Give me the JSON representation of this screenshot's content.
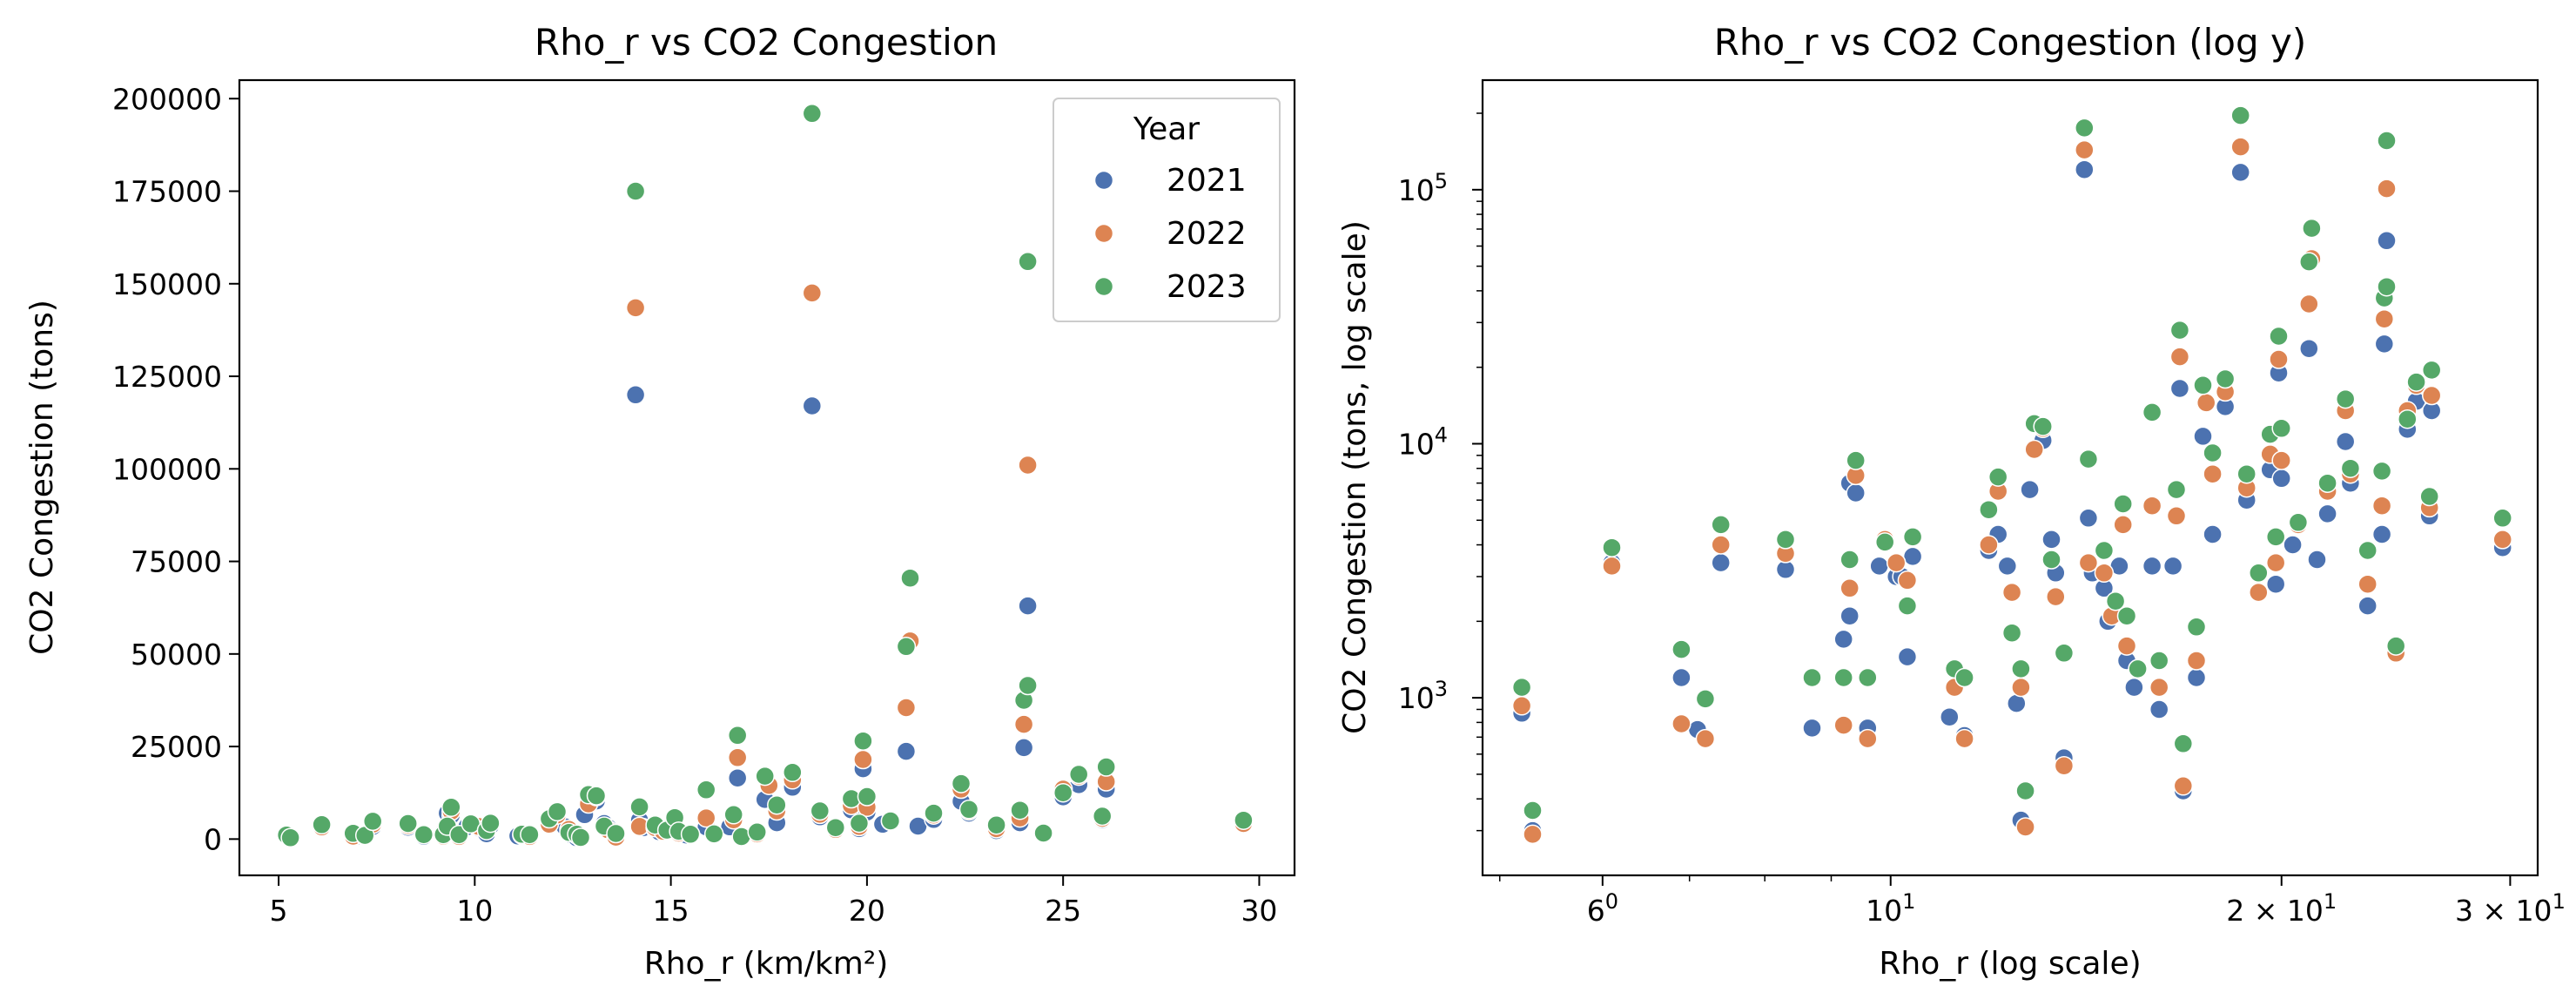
{
  "chart_data": [
    {
      "type": "scatter",
      "title": "Rho_r vs CO2 Congestion",
      "xlabel": "Rho_r (km/km²)",
      "ylabel": "CO2 Congestion (tons)",
      "xlim": [
        4.0,
        30.9
      ],
      "ylim": [
        -9800,
        205000
      ],
      "x_scale": "linear",
      "y_scale": "linear",
      "grid": false,
      "xticks": [
        {
          "v": 5,
          "label": "5"
        },
        {
          "v": 10,
          "label": "10"
        },
        {
          "v": 15,
          "label": "15"
        },
        {
          "v": 20,
          "label": "20"
        },
        {
          "v": 25,
          "label": "25"
        },
        {
          "v": 30,
          "label": "30"
        }
      ],
      "yticks": [
        {
          "v": 0,
          "label": "0"
        },
        {
          "v": 25000,
          "label": "25000"
        },
        {
          "v": 50000,
          "label": "50000"
        },
        {
          "v": 75000,
          "label": "75000"
        },
        {
          "v": 100000,
          "label": "100000"
        },
        {
          "v": 125000,
          "label": "125000"
        },
        {
          "v": 150000,
          "label": "150000"
        },
        {
          "v": 175000,
          "label": "175000"
        },
        {
          "v": 200000,
          "label": "200000"
        }
      ],
      "legend": {
        "title": "Year",
        "placement": "top-right"
      },
      "series": [
        {
          "name": "2021",
          "color": "#4c72b0",
          "points": [
            [
              5.2,
              870
            ],
            [
              5.3,
              300
            ],
            [
              6.1,
              3400
            ],
            [
              6.9,
              1200
            ],
            [
              7.1,
              750
            ],
            [
              7.4,
              3400
            ],
            [
              8.3,
              3200
            ],
            [
              8.7,
              760
            ],
            [
              9.2,
              1700
            ],
            [
              9.3,
              2100
            ],
            [
              9.3,
              7000
            ],
            [
              9.4,
              6400
            ],
            [
              9.6,
              760
            ],
            [
              9.8,
              3300
            ],
            [
              10.1,
              3000
            ],
            [
              10.2,
              3000
            ],
            [
              10.3,
              1450
            ],
            [
              10.4,
              3600
            ],
            [
              11.1,
              840
            ],
            [
              11.4,
              710
            ],
            [
              11.9,
              3800
            ],
            [
              12.1,
              4400
            ],
            [
              12.3,
              3300
            ],
            [
              12.5,
              950
            ],
            [
              12.6,
              330
            ],
            [
              12.8,
              6600
            ],
            [
              13.1,
              10300
            ],
            [
              13.3,
              4200
            ],
            [
              13.6,
              580
            ],
            [
              13.4,
              3100
            ],
            [
              14.1,
              120000
            ],
            [
              14.2,
              5100
            ],
            [
              14.3,
              3100
            ],
            [
              14.6,
              2700
            ],
            [
              14.7,
              2000
            ],
            [
              15.0,
              3300
            ],
            [
              15.2,
              1400
            ],
            [
              15.4,
              1100
            ],
            [
              15.9,
              3300
            ],
            [
              16.1,
              900
            ],
            [
              16.5,
              3300
            ],
            [
              16.7,
              16500
            ],
            [
              16.8,
              430
            ],
            [
              17.2,
              1200
            ],
            [
              17.4,
              10700
            ],
            [
              17.7,
              4400
            ],
            [
              18.1,
              14000
            ],
            [
              18.6,
              117000
            ],
            [
              18.8,
              6000
            ],
            [
              19.2,
              3100
            ],
            [
              19.6,
              7900
            ],
            [
              19.8,
              2800
            ],
            [
              19.9,
              19000
            ],
            [
              20.0,
              7300
            ],
            [
              20.4,
              4000
            ],
            [
              21.0,
              23700
            ],
            [
              21.3,
              3500
            ],
            [
              21.7,
              5300
            ],
            [
              22.4,
              10200
            ],
            [
              22.6,
              7000
            ],
            [
              23.3,
              2300
            ],
            [
              23.9,
              4400
            ],
            [
              24.0,
              24700
            ],
            [
              24.1,
              63000
            ],
            [
              24.5,
              1500
            ],
            [
              25.0,
              11400
            ],
            [
              25.4,
              14700
            ],
            [
              26.0,
              5200
            ],
            [
              26.1,
              13500
            ],
            [
              29.6,
              3900
            ]
          ]
        },
        {
          "name": "2022",
          "color": "#dd8452",
          "points": [
            [
              5.2,
              930
            ],
            [
              5.3,
              290
            ],
            [
              6.1,
              3300
            ],
            [
              6.9,
              790
            ],
            [
              7.2,
              690
            ],
            [
              7.4,
              4000
            ],
            [
              8.3,
              3700
            ],
            [
              9.2,
              780
            ],
            [
              9.3,
              2700
            ],
            [
              9.4,
              7500
            ],
            [
              9.6,
              690
            ],
            [
              9.9,
              4200
            ],
            [
              10.1,
              3400
            ],
            [
              10.3,
              2900
            ],
            [
              11.2,
              1100
            ],
            [
              11.4,
              690
            ],
            [
              11.9,
              4000
            ],
            [
              12.1,
              6500
            ],
            [
              12.4,
              2600
            ],
            [
              12.6,
              1100
            ],
            [
              12.7,
              310
            ],
            [
              12.9,
              9500
            ],
            [
              13.1,
              11500
            ],
            [
              13.4,
              2500
            ],
            [
              13.6,
              540
            ],
            [
              14.1,
              143500
            ],
            [
              14.2,
              3400
            ],
            [
              14.6,
              3100
            ],
            [
              14.8,
              2100
            ],
            [
              15.1,
              4800
            ],
            [
              15.2,
              1600
            ],
            [
              15.5,
              1300
            ],
            [
              15.9,
              5700
            ],
            [
              16.1,
              1100
            ],
            [
              16.6,
              5200
            ],
            [
              16.7,
              22000
            ],
            [
              16.8,
              450
            ],
            [
              17.2,
              1400
            ],
            [
              17.5,
              14500
            ],
            [
              17.7,
              7600
            ],
            [
              18.1,
              16000
            ],
            [
              18.6,
              147500
            ],
            [
              18.8,
              6700
            ],
            [
              19.2,
              2600
            ],
            [
              19.6,
              9100
            ],
            [
              19.8,
              3400
            ],
            [
              19.9,
              21500
            ],
            [
              20.0,
              8600
            ],
            [
              20.6,
              4800
            ],
            [
              21.0,
              35500
            ],
            [
              21.1,
              53500
            ],
            [
              21.7,
              6500
            ],
            [
              22.4,
              13500
            ],
            [
              22.6,
              7600
            ],
            [
              23.3,
              2800
            ],
            [
              23.9,
              5700
            ],
            [
              24.0,
              31000
            ],
            [
              24.1,
              101000
            ],
            [
              24.5,
              1500
            ],
            [
              25.0,
              13500
            ],
            [
              25.4,
              17000
            ],
            [
              26.0,
              5600
            ],
            [
              26.1,
              15500
            ],
            [
              29.6,
              4200
            ]
          ]
        },
        {
          "name": "2023",
          "color": "#55a868",
          "points": [
            [
              5.2,
              1100
            ],
            [
              5.3,
              360
            ],
            [
              6.1,
              3900
            ],
            [
              6.9,
              1550
            ],
            [
              7.2,
              990
            ],
            [
              7.4,
              4800
            ],
            [
              8.3,
              4200
            ],
            [
              8.7,
              1200
            ],
            [
              9.2,
              1200
            ],
            [
              9.3,
              3500
            ],
            [
              9.4,
              8600
            ],
            [
              9.6,
              1200
            ],
            [
              9.9,
              4100
            ],
            [
              10.3,
              2300
            ],
            [
              10.4,
              4300
            ],
            [
              11.2,
              1300
            ],
            [
              11.4,
              1200
            ],
            [
              11.9,
              5500
            ],
            [
              12.1,
              7400
            ],
            [
              12.4,
              1800
            ],
            [
              12.6,
              1300
            ],
            [
              12.7,
              430
            ],
            [
              12.9,
              12000
            ],
            [
              13.1,
              11700
            ],
            [
              13.3,
              3500
            ],
            [
              13.6,
              1500
            ],
            [
              14.1,
              175000
            ],
            [
              14.2,
              8700
            ],
            [
              14.6,
              3800
            ],
            [
              14.9,
              2400
            ],
            [
              15.1,
              5800
            ],
            [
              15.2,
              2100
            ],
            [
              15.5,
              1300
            ],
            [
              15.9,
              13300
            ],
            [
              16.1,
              1400
            ],
            [
              16.6,
              6600
            ],
            [
              16.7,
              28000
            ],
            [
              16.8,
              660
            ],
            [
              17.2,
              1900
            ],
            [
              17.4,
              17000
            ],
            [
              17.7,
              9200
            ],
            [
              18.1,
              18000
            ],
            [
              18.6,
              196000
            ],
            [
              18.8,
              7600
            ],
            [
              19.2,
              3100
            ],
            [
              19.6,
              10900
            ],
            [
              19.8,
              4300
            ],
            [
              19.9,
              26500
            ],
            [
              20.0,
              11500
            ],
            [
              20.6,
              4900
            ],
            [
              21.0,
              52000
            ],
            [
              21.1,
              70500
            ],
            [
              21.7,
              7000
            ],
            [
              22.4,
              15000
            ],
            [
              22.6,
              8000
            ],
            [
              23.3,
              3800
            ],
            [
              23.9,
              7800
            ],
            [
              24.0,
              37500
            ],
            [
              24.1,
              41500
            ],
            [
              24.1,
              156000
            ],
            [
              24.5,
              1600
            ],
            [
              25.0,
              12500
            ],
            [
              25.4,
              17500
            ],
            [
              26.0,
              6200
            ],
            [
              26.1,
              19500
            ],
            [
              29.6,
              5100
            ]
          ]
        }
      ]
    },
    {
      "type": "scatter",
      "title": "Rho_r vs CO2 Congestion (log y)",
      "xlabel": "Rho_r (log scale)",
      "ylabel": "CO2 Congestion (tons, log scale)",
      "xlim": [
        4.85,
        31.5
      ],
      "ylim": [
        200,
        270000
      ],
      "x_scale": "log",
      "y_scale": "log",
      "grid": false,
      "xticks": [
        {
          "v": 6,
          "base": "6",
          "sup": "0"
        },
        {
          "v": 10,
          "base": "10",
          "sup": "1"
        },
        {
          "v": 20,
          "base": "2 × 10",
          "sup": "1"
        },
        {
          "v": 30,
          "base": "3 × 10",
          "sup": "1"
        }
      ],
      "yticks": [
        {
          "v": 1000,
          "base": "10",
          "sup": "3"
        },
        {
          "v": 10000,
          "base": "10",
          "sup": "4"
        },
        {
          "v": 100000,
          "base": "10",
          "sup": "5"
        }
      ],
      "series_ref": "same data as first chart"
    }
  ]
}
